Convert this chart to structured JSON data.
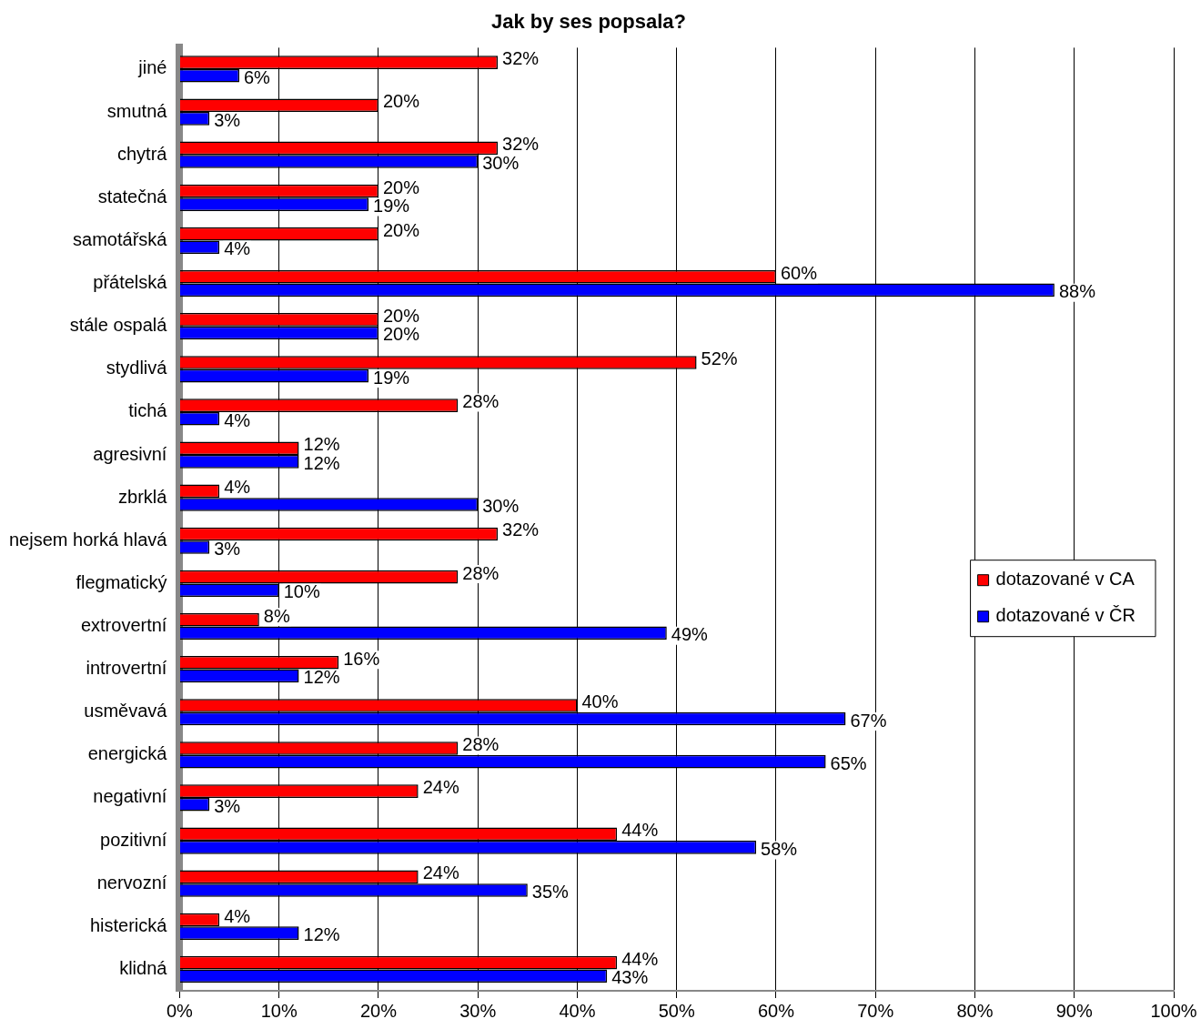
{
  "chart_data": {
    "type": "bar",
    "orientation": "horizontal",
    "title": "Jak by ses popsala?",
    "categories": [
      "jiné",
      "smutná",
      "chytrá",
      "statečná",
      "samotářská",
      "přátelská",
      "stále ospalá",
      "stydlivá",
      "tichá",
      "agresivní",
      "zbrklá",
      "nejsem horká hlavá",
      "flegmatický",
      "extrovertní",
      "introvertní",
      "usměvavá",
      "energická",
      "negativní",
      "pozitivní",
      "nervozní",
      "histerická",
      "klidná"
    ],
    "series": [
      {
        "name": "dotazované v CA",
        "color": "#ff0000",
        "values": [
          32,
          20,
          32,
          20,
          20,
          60,
          20,
          52,
          28,
          12,
          4,
          32,
          28,
          8,
          16,
          40,
          28,
          24,
          44,
          24,
          4,
          44
        ],
        "value_labels": [
          "32%",
          "20%",
          "32%",
          "20%",
          "20%",
          "60%",
          "20%",
          "52%",
          "28%",
          "12%",
          "4%",
          "32%",
          "28%",
          "8%",
          "16%",
          "40%",
          "28%",
          "24%",
          "44%",
          "24%",
          "4%",
          "44%"
        ]
      },
      {
        "name": "dotazované v ČR",
        "color": "#0000ff",
        "values": [
          6,
          3,
          30,
          19,
          4,
          88,
          20,
          19,
          4,
          12,
          30,
          3,
          10,
          49,
          12,
          67,
          65,
          3,
          58,
          35,
          12,
          43
        ],
        "value_labels": [
          "6%",
          "3%",
          "30%",
          "19%",
          "4%",
          "88%",
          "20%",
          "19%",
          "4%",
          "12%",
          "30%",
          "3%",
          "10%",
          "49%",
          "12%",
          "67%",
          "65%",
          "3%",
          "58%",
          "35%",
          "12%",
          "43%"
        ]
      }
    ],
    "xlim": [
      0,
      100
    ],
    "xticks": [
      {
        "value": 0,
        "label": "0%"
      },
      {
        "value": 10,
        "label": "10%"
      },
      {
        "value": 20,
        "label": "20%"
      },
      {
        "value": 30,
        "label": "30%"
      },
      {
        "value": 40,
        "label": "40%"
      },
      {
        "value": 50,
        "label": "50%"
      },
      {
        "value": 60,
        "label": "60%"
      },
      {
        "value": 70,
        "label": "70%"
      },
      {
        "value": 80,
        "label": "80%"
      },
      {
        "value": 90,
        "label": "90%"
      },
      {
        "value": 100,
        "label": "100%"
      }
    ],
    "grid": "x",
    "legend": "right"
  }
}
